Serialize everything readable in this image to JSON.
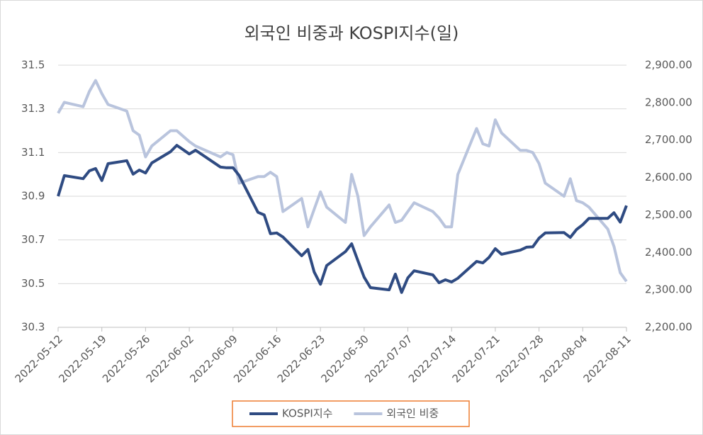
{
  "chart_data": {
    "type": "line",
    "title": "외국인 비중과 KOSPI지수(일)",
    "x": [
      "2022-05-12",
      "2022-05-13",
      "2022-05-16",
      "2022-05-17",
      "2022-05-18",
      "2022-05-19",
      "2022-05-20",
      "2022-05-23",
      "2022-05-24",
      "2022-05-25",
      "2022-05-26",
      "2022-05-27",
      "2022-05-30",
      "2022-05-31",
      "2022-06-02",
      "2022-06-03",
      "2022-06-07",
      "2022-06-08",
      "2022-06-09",
      "2022-06-10",
      "2022-06-13",
      "2022-06-14",
      "2022-06-15",
      "2022-06-16",
      "2022-06-17",
      "2022-06-20",
      "2022-06-21",
      "2022-06-22",
      "2022-06-23",
      "2022-06-24",
      "2022-06-27",
      "2022-06-28",
      "2022-06-29",
      "2022-06-30",
      "2022-07-01",
      "2022-07-04",
      "2022-07-05",
      "2022-07-06",
      "2022-07-07",
      "2022-07-08",
      "2022-07-11",
      "2022-07-12",
      "2022-07-13",
      "2022-07-14",
      "2022-07-15",
      "2022-07-18",
      "2022-07-19",
      "2022-07-20",
      "2022-07-21",
      "2022-07-22",
      "2022-07-25",
      "2022-07-26",
      "2022-07-27",
      "2022-07-28",
      "2022-07-29",
      "2022-08-01",
      "2022-08-02",
      "2022-08-03",
      "2022-08-04",
      "2022-08-05",
      "2022-08-08",
      "2022-08-09",
      "2022-08-10",
      "2022-08-11"
    ],
    "series": [
      {
        "name": "KOSPI지수",
        "color": "#2f4b82",
        "axis": "y2",
        "values": [
          2550,
          2605,
          2597,
          2618,
          2624,
          2592,
          2637,
          2645,
          2609,
          2620,
          2612,
          2639,
          2669,
          2686,
          2663,
          2673,
          2628,
          2626,
          2626,
          2605,
          2507,
          2500,
          2450,
          2452,
          2441,
          2391,
          2408,
          2348,
          2315,
          2365,
          2402,
          2423,
          2378,
          2334,
          2306,
          2300,
          2342,
          2293,
          2332,
          2351,
          2340,
          2319,
          2327,
          2321,
          2331,
          2376,
          2372,
          2387,
          2410,
          2395,
          2406,
          2414,
          2415,
          2438,
          2452,
          2453,
          2440,
          2461,
          2474,
          2491,
          2491,
          2506,
          2481,
          2525
        ]
      },
      {
        "name": "외국인 비중",
        "color": "#b9c4dd",
        "values": [
          31.28,
          31.33,
          31.31,
          31.38,
          31.43,
          31.37,
          31.32,
          31.29,
          31.2,
          31.18,
          31.08,
          31.13,
          31.2,
          31.2,
          31.15,
          31.13,
          31.08,
          31.1,
          31.09,
          30.96,
          30.99,
          30.99,
          31.01,
          30.99,
          30.83,
          30.89,
          30.76,
          30.84,
          30.92,
          30.85,
          30.78,
          31.0,
          30.9,
          30.72,
          30.76,
          30.86,
          30.78,
          30.79,
          30.83,
          30.87,
          30.83,
          30.8,
          30.76,
          30.76,
          31.0,
          31.21,
          31.14,
          31.13,
          31.25,
          31.19,
          31.11,
          31.11,
          31.1,
          31.05,
          30.96,
          30.9,
          30.98,
          30.88,
          30.87,
          30.85,
          30.75,
          30.67,
          30.55,
          30.51
        ]
      }
    ],
    "xlim": [
      "2022-05-12",
      "2022-08-11"
    ],
    "xticks": [
      "2022-05-12",
      "2022-05-19",
      "2022-05-26",
      "2022-06-02",
      "2022-06-09",
      "2022-06-16",
      "2022-06-23",
      "2022-06-30",
      "2022-07-07",
      "2022-07-14",
      "2022-07-21",
      "2022-07-28",
      "2022-08-04",
      "2022-08-11"
    ],
    "ylim": [
      30.3,
      31.5
    ],
    "yticks": [
      30.3,
      30.5,
      30.7,
      30.9,
      31.1,
      31.3,
      31.5
    ],
    "y2lim": [
      2200,
      2900
    ],
    "y2ticks": [
      {
        "value": 2200,
        "label": "2,200.00"
      },
      {
        "value": 2300,
        "label": "2,300.00"
      },
      {
        "value": 2400,
        "label": "2,400.00"
      },
      {
        "value": 2500,
        "label": "2,500.00"
      },
      {
        "value": 2600,
        "label": "2,600.00"
      },
      {
        "value": 2700,
        "label": "2,700.00"
      },
      {
        "value": 2800,
        "label": "2,800.00"
      },
      {
        "value": 2900,
        "label": "2,900.00"
      }
    ],
    "grid": true,
    "legend": "bottom"
  }
}
